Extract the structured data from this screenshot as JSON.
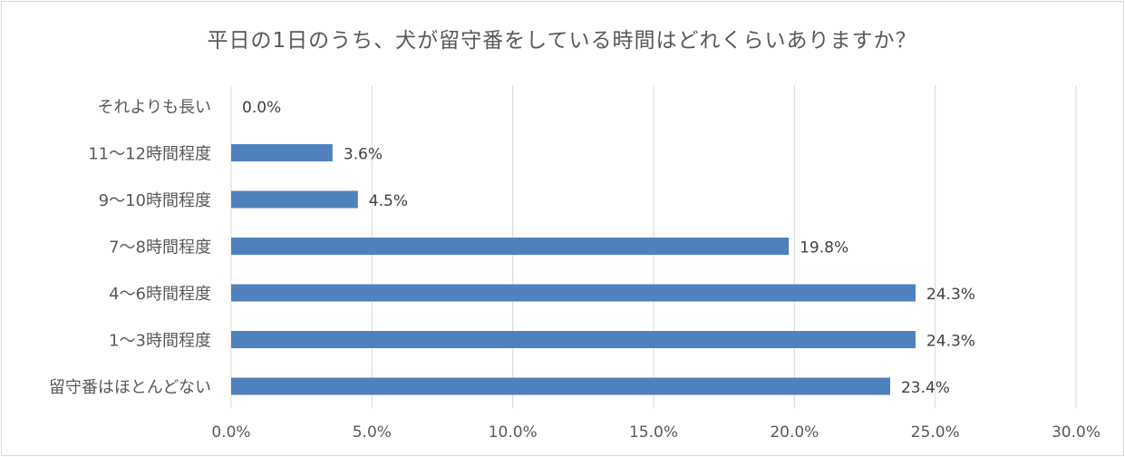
{
  "chart_data": {
    "type": "bar",
    "orientation": "horizontal",
    "title": "平日の1日のうち、犬が留守番をしている時間はどれくらいありますか？",
    "categories": [
      "それよりも長い",
      "11～12時間程度",
      "9～10時間程度",
      "7～8時間程度",
      "4～6時間程度",
      "1～3時間程度",
      "留守番はほとんどない"
    ],
    "values": [
      0.0,
      3.6,
      4.5,
      19.8,
      24.3,
      24.3,
      23.4
    ],
    "value_labels": [
      "0.0%",
      "3.6%",
      "4.5%",
      "19.8%",
      "24.3%",
      "24.3%",
      "23.4%"
    ],
    "x_ticks": [
      "0.0%",
      "5.0%",
      "10.0%",
      "15.0%",
      "20.0%",
      "25.0%",
      "30.0%"
    ],
    "xlim": [
      0,
      30
    ],
    "xlabel": "",
    "ylabel": "",
    "grid": "vertical",
    "legend": "none",
    "bar_color": "#4f81bd",
    "grid_color": "#d9d9d9",
    "text_color": "#595959"
  }
}
